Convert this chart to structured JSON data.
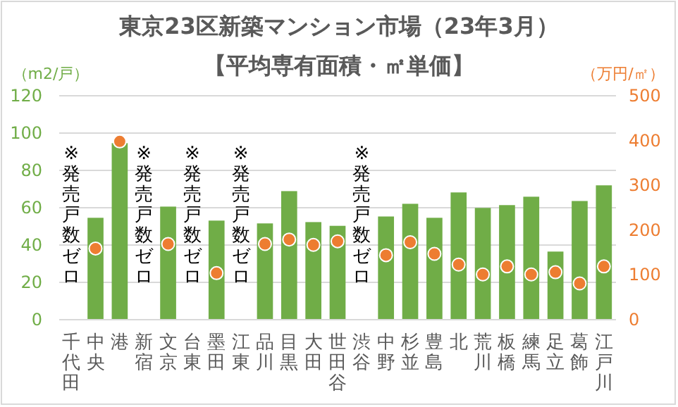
{
  "chart_data": {
    "type": "bar",
    "title": "東京23区新築マンション市場（23年3月）",
    "subtitle": "【平均専有面積・㎡単価】",
    "ylabel": "（m2/戸）",
    "y2label": "（万円/㎡）",
    "categories": [
      "千代田",
      "中央",
      "港",
      "新宿",
      "文京",
      "台東",
      "墨田",
      "江東",
      "品川",
      "目黒",
      "大田",
      "世田谷",
      "渋谷",
      "中野",
      "杉並",
      "豊島",
      "北",
      "荒川",
      "板橋",
      "練馬",
      "足立",
      "葛飾",
      "江戸川"
    ],
    "series": [
      {
        "color": "#70ad47",
        "values": [
          null,
          54.6,
          94.6,
          null,
          60.6,
          null,
          53.1,
          null,
          51.6,
          68.9,
          52.3,
          50.3,
          null,
          55.3,
          62.1,
          54.6,
          68.2,
          59.9,
          61.4,
          65.9,
          36.5,
          63.6,
          72.0
        ]
      },
      {
        "type": "scatter",
        "axis": "y2",
        "marker": "circle",
        "color": "#ed7d31",
        "values": [
          null,
          159,
          398,
          null,
          169,
          null,
          104,
          null,
          169,
          179,
          167,
          175,
          null,
          144,
          173,
          147,
          123,
          101,
          119,
          101,
          106,
          81,
          119
        ]
      }
    ],
    "ylim": [
      0,
      120
    ],
    "yticks": [
      0,
      20,
      40,
      60,
      80,
      100,
      120
    ],
    "y2lim": [
      0,
      500
    ],
    "y2ticks": [
      0,
      100,
      200,
      300,
      400,
      500
    ],
    "grid": "y",
    "annotations": [
      "※発売戸数ゼロ",
      "※発売戸数ゼロ",
      "※発売戸数ゼロ",
      "※発売戸数ゼロ",
      "※発売戸数ゼロ"
    ]
  }
}
